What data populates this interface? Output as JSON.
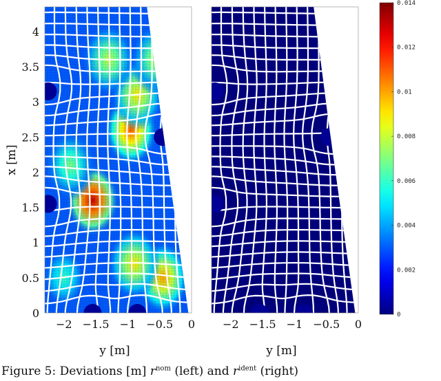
{
  "figure": {
    "caption": {
      "prefix": "Figure 5: Deviations [m]",
      "sym_left": "r",
      "sup_left": "nom",
      "mid": "(left) and",
      "sym_right": "r",
      "sup_right": "ident",
      "suffix": "(right)"
    }
  },
  "chart_data": [
    {
      "type": "heatmap",
      "title": "",
      "xlabel": "y [m]",
      "ylabel": "x [m]",
      "xlim": [
        -2.3,
        0
      ],
      "ylim": [
        0,
        4.35
      ],
      "xticks": [
        "−2",
        "−1.5",
        "−1",
        "−0.5",
        "0"
      ],
      "xtick_values": [
        -2,
        -1.5,
        -1,
        -0.5,
        0
      ],
      "yticks": [
        "0",
        "0.5",
        "1",
        "1.5",
        "2",
        "2.5",
        "3",
        "3.5",
        "4"
      ],
      "ytick_values": [
        0,
        0.5,
        1,
        1.5,
        2,
        2.5,
        3,
        3.5,
        4
      ],
      "mesh_overlay": "white curvilinear grid",
      "hotspots": [
        {
          "y": -1.55,
          "x": 1.6,
          "value": 0.013
        },
        {
          "y": -0.95,
          "x": 2.6,
          "value": 0.011
        },
        {
          "y": -0.85,
          "x": 3.1,
          "value": 0.009
        },
        {
          "y": -0.45,
          "x": 0.5,
          "value": 0.01
        },
        {
          "y": -0.9,
          "x": 0.7,
          "value": 0.009
        },
        {
          "y": -1.3,
          "x": 3.6,
          "value": 0.008
        },
        {
          "y": -0.55,
          "x": 3.6,
          "value": 0.008
        },
        {
          "y": -1.9,
          "x": 2.1,
          "value": 0.007
        },
        {
          "y": -2.0,
          "x": 0.5,
          "value": 0.006
        }
      ]
    },
    {
      "type": "heatmap",
      "title": "",
      "xlabel": "y [m]",
      "ylabel": "",
      "xlim": [
        -2.3,
        0
      ],
      "ylim": [
        0,
        4.35
      ],
      "xticks": [
        "−2",
        "−1.5",
        "−1",
        "−0.5",
        "0"
      ],
      "xtick_values": [
        -2,
        -1.5,
        -1,
        -0.5,
        0
      ],
      "mesh_overlay": "white curvilinear grid",
      "hotspots": []
    }
  ],
  "colorbar": {
    "min": 0,
    "max": 0.014,
    "ticks": [
      "0",
      "0.002",
      "0.004",
      "0.006",
      "0.008",
      "0.01",
      "0.012",
      "0.014"
    ],
    "tick_values": [
      0,
      0.002,
      0.004,
      0.006,
      0.008,
      0.01,
      0.012,
      0.014
    ],
    "colormap": "jet"
  },
  "colors": {
    "mesh": "#ffffff",
    "background_low": "#000a8c",
    "outside": "#ffffff"
  }
}
